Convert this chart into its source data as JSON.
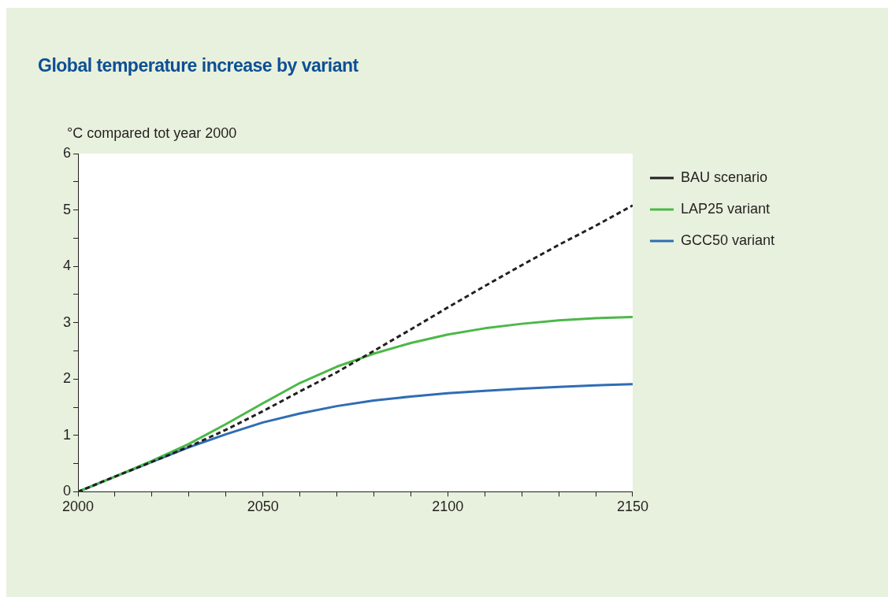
{
  "chart_data": {
    "type": "line",
    "title": "Global temperature increase by variant",
    "ylabel": "°C compared tot year 2000",
    "x": [
      2000,
      2010,
      2020,
      2030,
      2040,
      2050,
      2060,
      2070,
      2080,
      2090,
      2100,
      2110,
      2120,
      2130,
      2140,
      2150
    ],
    "series": [
      {
        "name": "BAU scenario",
        "color": "#231f20",
        "line_style": "dashed",
        "values": [
          0,
          0.27,
          0.53,
          0.8,
          1.1,
          1.43,
          1.78,
          2.12,
          2.5,
          2.88,
          3.27,
          3.65,
          4.02,
          4.38,
          4.72,
          5.08
        ]
      },
      {
        "name": "LAP25 variant",
        "color": "#4cb848",
        "line_style": "solid",
        "values": [
          0,
          0.27,
          0.55,
          0.85,
          1.2,
          1.57,
          1.93,
          2.22,
          2.45,
          2.64,
          2.79,
          2.9,
          2.98,
          3.04,
          3.08,
          3.1
        ]
      },
      {
        "name": "GCC50 variant",
        "color": "#2f6db3",
        "line_style": "solid",
        "values": [
          0,
          0.27,
          0.53,
          0.79,
          1.02,
          1.23,
          1.39,
          1.52,
          1.62,
          1.69,
          1.75,
          1.79,
          1.83,
          1.86,
          1.89,
          1.91
        ]
      }
    ],
    "xlim": [
      2000,
      2150
    ],
    "xticks": [
      2000,
      {
        "value": 2010,
        "label": null
      },
      {
        "value": 2020,
        "label": null
      },
      {
        "value": 2030,
        "label": null
      },
      {
        "value": 2040,
        "label": null
      },
      2050,
      {
        "value": 2060,
        "label": null
      },
      {
        "value": 2070,
        "label": null
      },
      {
        "value": 2080,
        "label": null
      },
      {
        "value": 2090,
        "label": null
      },
      2100,
      {
        "value": 2110,
        "label": null
      },
      {
        "value": 2120,
        "label": null
      },
      {
        "value": 2130,
        "label": null
      },
      {
        "value": 2140,
        "label": null
      },
      2150
    ],
    "ylim": [
      0,
      6
    ],
    "yticks": [
      0,
      {
        "value": 0.5,
        "label": null
      },
      1,
      {
        "value": 1.5,
        "label": null
      },
      2,
      {
        "value": 2.5,
        "label": null
      },
      3,
      {
        "value": 3.5,
        "label": null
      },
      4,
      {
        "value": 4.5,
        "label": null
      },
      5,
      {
        "value": 5.5,
        "label": null
      },
      6
    ],
    "grid": false,
    "legend": "top right",
    "marker": "none"
  }
}
